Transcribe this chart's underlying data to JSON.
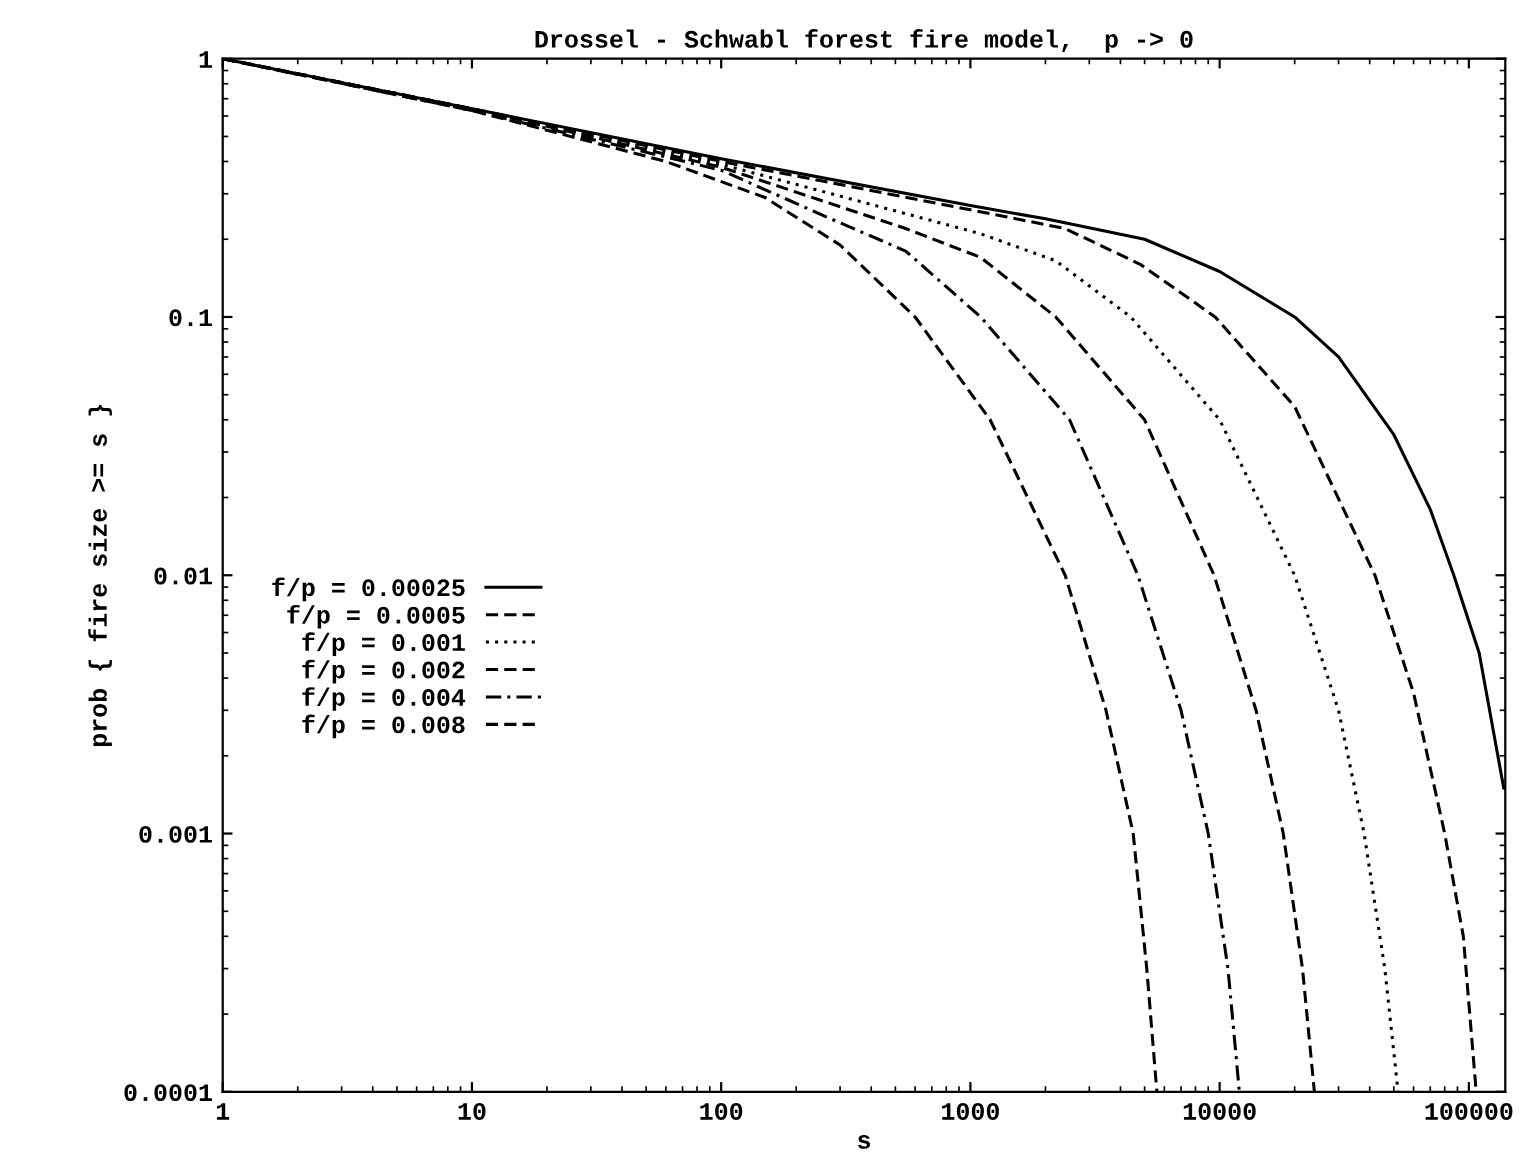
{
  "chart_data": {
    "type": "line",
    "title": "Drossel - Schwabl forest fire model,  p -> 0",
    "xlabel": "s",
    "ylabel": "prob { fire size >= s }",
    "log": "xy",
    "xlim": [
      1,
      140000
    ],
    "ylim": [
      0.0001,
      1
    ],
    "xticks": [
      1,
      10,
      100,
      1000,
      10000,
      100000
    ],
    "yticks": [
      0.0001,
      0.001,
      0.01,
      0.1,
      1
    ],
    "grid": false,
    "legend": "left",
    "marker": "none",
    "series": [
      {
        "name": "f/p = 0.00025",
        "color": "#000000",
        "line_style": "solid",
        "x": [
          1,
          10,
          100,
          1000,
          2000,
          5000,
          10000,
          20000,
          30000,
          50000,
          70000,
          87000,
          110000,
          138000
        ],
        "values": [
          1,
          0.64,
          0.41,
          0.27,
          0.24,
          0.2,
          0.15,
          0.1,
          0.07,
          0.035,
          0.018,
          0.01,
          0.005,
          0.0015
        ]
      },
      {
        "name": "f/p = 0.0005",
        "color": "#000000",
        "line_style": "dashed",
        "x": [
          1,
          10,
          100,
          1000,
          2400,
          4800,
          9600,
          20000,
          42000,
          60000,
          80000,
          95000,
          107000
        ],
        "values": [
          1,
          0.64,
          0.4,
          0.26,
          0.22,
          0.16,
          0.1,
          0.045,
          0.01,
          0.0035,
          0.001,
          0.0004,
          0.0001
        ]
      },
      {
        "name": "f/p = 0.001",
        "color": "#000000",
        "line_style": "dotted",
        "x": [
          1,
          10,
          100,
          1100,
          2200,
          4400,
          10000,
          20000,
          30000,
          38000,
          46000,
          52000
        ],
        "values": [
          1,
          0.64,
          0.39,
          0.21,
          0.165,
          0.1,
          0.04,
          0.01,
          0.003,
          0.001,
          0.0003,
          0.0001
        ]
      },
      {
        "name": "f/p = 0.002",
        "color": "#000000",
        "line_style": "dashed",
        "x": [
          1,
          10,
          100,
          550,
          1100,
          2200,
          5000,
          9500,
          14000,
          18000,
          21500,
          24000
        ],
        "values": [
          1,
          0.64,
          0.38,
          0.22,
          0.17,
          0.1,
          0.04,
          0.01,
          0.003,
          0.001,
          0.0003,
          0.0001
        ]
      },
      {
        "name": "f/p = 0.004",
        "color": "#000000",
        "line_style": "dashdot",
        "x": [
          1,
          10,
          100,
          275,
          550,
          1100,
          2500,
          4700,
          7000,
          9000,
          10800,
          12000
        ],
        "values": [
          1,
          0.63,
          0.37,
          0.24,
          0.18,
          0.1,
          0.04,
          0.01,
          0.003,
          0.001,
          0.0003,
          0.0001
        ]
      },
      {
        "name": "f/p = 0.008",
        "color": "#000000",
        "line_style": "dashed",
        "x": [
          1,
          10,
          60,
          150,
          300,
          600,
          1200,
          2400,
          3500,
          4500,
          5100,
          5600
        ],
        "values": [
          1,
          0.63,
          0.4,
          0.29,
          0.19,
          0.1,
          0.04,
          0.01,
          0.003,
          0.001,
          0.0003,
          0.0001
        ]
      }
    ]
  }
}
